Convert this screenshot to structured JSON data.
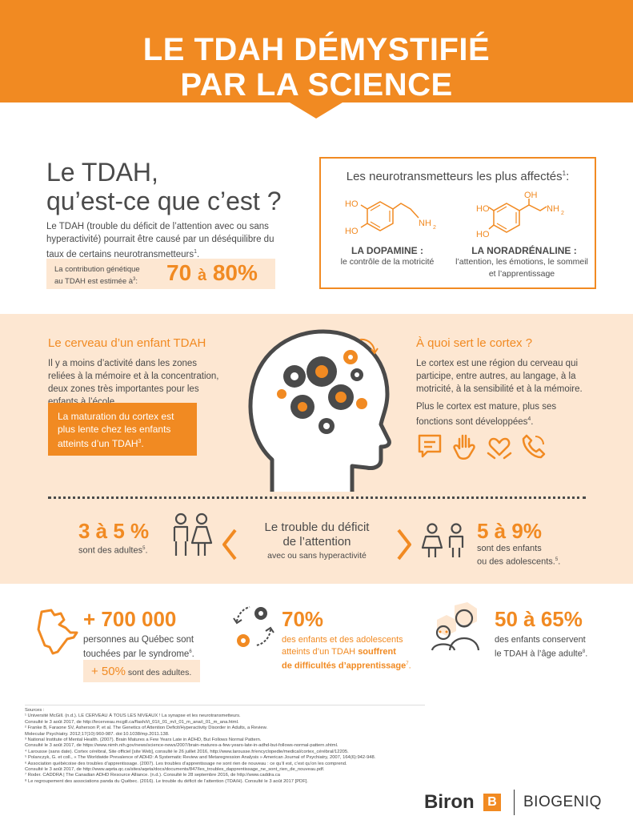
{
  "header": {
    "title_line1": "LE TDAH DÉMYSTIFIÉ",
    "title_line2": "PAR LA SCIENCE",
    "color": "#f18a22"
  },
  "intro": {
    "question_line1": "Le TDAH,",
    "question_line2": "qu’est-ce que c’est ?",
    "text": "Le TDAH (trouble du déficit de l’attention avec ou sans hyperactivité) pourrait être causé par un déséquilibre du taux de certains neurotransmetteurs",
    "text_ref": "1",
    "genetic_label_line1": "La contribution génétique",
    "genetic_label_line2": "au TDAH est estimée à",
    "genetic_ref": "3",
    "genetic_value_a": "70",
    "genetic_value_sep": "à",
    "genetic_value_b": "80%"
  },
  "neurotransmitters": {
    "title": "Les neurotransmetteurs les plus affectés",
    "title_ref": "1",
    "dopamine": {
      "name": "LA DOPAMINE :",
      "desc": "le contrôle de la motricité",
      "ho1": "HO",
      "ho2": "HO",
      "nh": "NH",
      "nh_sub": "2"
    },
    "noradrenaline": {
      "name": "LA NORADRÉNALINE :",
      "desc_line1": "l’attention, les émotions, le sommeil",
      "desc_line2": "et l’apprentissage",
      "ho1": "HO",
      "ho2": "HO",
      "oh": "OH",
      "nh": "NH",
      "nh_sub": "2"
    }
  },
  "brain": {
    "heading": "Le cerveau d’un enfant TDAH",
    "text": "Il y a moins d’activité dans les zones reliées à la mémoire et à la concentration, deux zones très importantes pour les enfants à l’école.",
    "maturation": "La maturation du cortex est plus lente chez les enfants atteints d’un TDAH",
    "maturation_ref": "3"
  },
  "cortex": {
    "heading": "À quoi sert le cortex ?",
    "text": "Le cortex est une région du cerveau qui participe, entre autres, au langage, à la motricité, à la sensibilité et à la mémoire.",
    "text2": "Plus le cortex est mature, plus ses fonctions sont développées",
    "text2_ref": "4",
    "icons": [
      "speech-icon",
      "hand-icon",
      "heart-hands-icon",
      "phone-icon"
    ]
  },
  "center": {
    "title_line1": "Le trouble du déficit",
    "title_line2": "de l’attention",
    "subtitle": "avec ou sans hyperactivité"
  },
  "adults_stat": {
    "value": "3 à 5 %",
    "label": "sont des adultes",
    "ref": "5"
  },
  "children_stat": {
    "value": "5 à 9%",
    "label_line1": "sont des enfants",
    "label_line2": "ou des adolescents.",
    "ref": "5"
  },
  "quebec": {
    "value": "+ 700 000",
    "label_line1": "personnes au Québec sont",
    "label_line2": "touchées par le syndrome",
    "ref": "6",
    "adults_value": "+ 50%",
    "adults_label": "sont des adultes."
  },
  "learning": {
    "value": "70%",
    "line1": "des enfants et des adolescents",
    "line2_a": "atteints d’un TDAH ",
    "line2_b": "souffrent",
    "line3": "de difficultés d’apprentissage",
    "ref": "7"
  },
  "adulthood": {
    "value": "50 à 65%",
    "line1": "des enfants conservent",
    "line2": "le TDAH à l’âge adulte",
    "ref": "8"
  },
  "sources": {
    "heading": "Sources :",
    "items": [
      "¹  Université McGill. (n.d.). LE CERVEAU À TOUS LES NIVEAUX ! La synapse et les neurotransmetteurs.",
      "    Consulté le 3 août 2017, de http://lecerveau.mcgill.ca/flash/i/i_01/i_01_m/i_01_m_ana/i_01_m_ana.html.",
      "²  Franke B, Faraone SV, Asherson P, et al. The Genetics of Attention Deficit/Hyperactivity Disorder in Adults, a Review.",
      "    Molecular Psychiatry. 2012;17(10):960-987. doi:10.1038/mp.2011.138.",
      "³  National Institute of Mental Health. (2007). Brain Matures a Few Years Late in ADHD, But Follows Normal Pattern.",
      "    Consulté le 3 août 2017, de https://www.nimh.nih.gov/news/science-news/2007/brain-matures-a-few-years-late-in-adhd-but-follows-normal-pattern.shtml.",
      "⁴  Larousse (sans date). Cortex cérébral, Site officiel [site Web], consulté le 26 juillet 2016, http://www.larousse.fr/encyclopedie/medical/cortex_cérébral/12205.",
      "⁵  Polanczyk, G. et coll., « The Worldwide Prevalence of ADHD: A Systematic Review and Metaregression Analysis » American Journal of Psychiatry, 2007, 164(6):942-948.",
      "⁶  Association québécoise des troubles d’apprentissage. (2007). Les troubles d’apprentissage ne sont rien de nouveau : ce qu’il est, c’est qu’on les comprend.",
      "    Consulté le 3 août 2017, de http://www.aqeta.qc.ca/sites/aqeta/docs/documents/847/les_troubles_dapprentissage_ne_sont_rien_de_nouveau.pdf.",
      "⁷  Roder. CADDRA | The Canadian ADHD Resource Alliance. (n.d.). Consulté le 28 septembre 2016, de http://www.caddra.ca",
      "⁸  Le regroupement des associations panda du Québec. (2016). Le trouble du déficit de l’attention (TDA/H). Consulté le 3 août 2017 [PDF]."
    ]
  },
  "logos": {
    "biron": "Biron",
    "biron_mark": "B",
    "biogeniq": "BIOGENIQ"
  }
}
